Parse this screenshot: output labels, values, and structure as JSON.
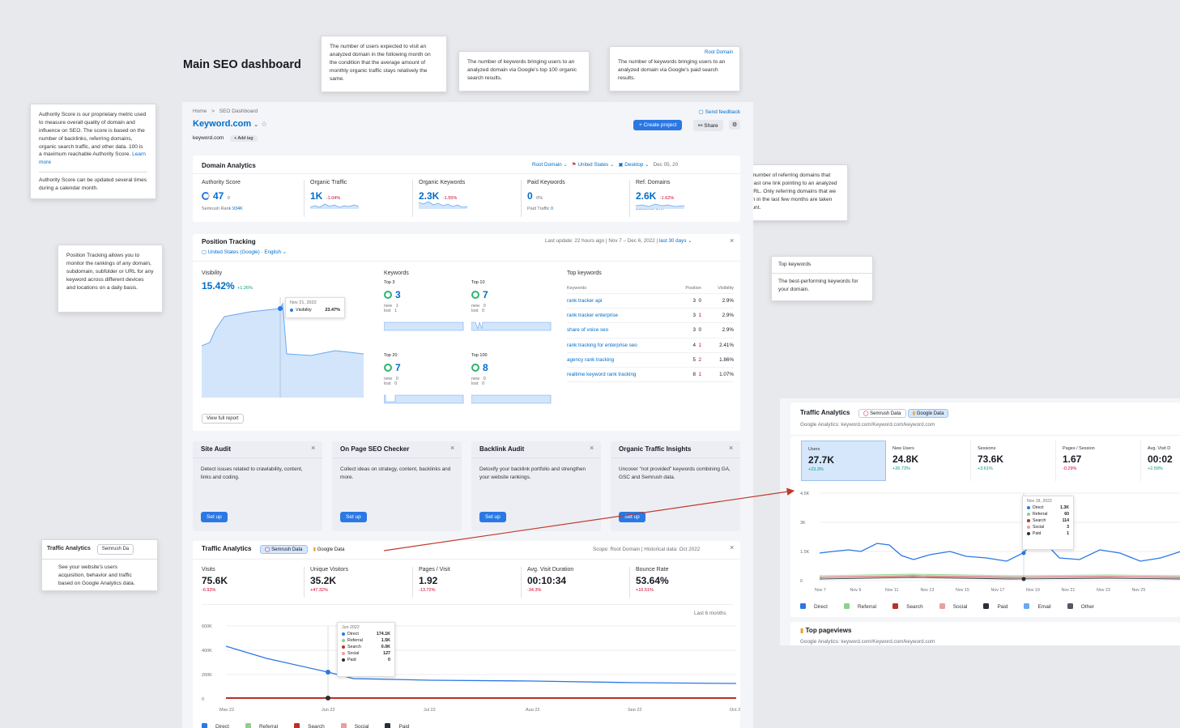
{
  "page_title": "Main SEO dashboard",
  "tips": {
    "visits": "The number of users expected to visit an analyzed domain in the following month on the condition that the average amount of monthly organic traffic stays relatively the same.",
    "organic_kw": "The number of keywords bringing users to an analyzed domain via Google's top 100 organic search results.",
    "paid_kw": "The number of keywords bringing users to an analyzed domain via Google's paid search results.",
    "paid_kw_header": "Root Domain",
    "authority": "Authority Score is our proprietary metric used to measure overall quality of domain and influence on SEO. The score is based on the number of backlinks, referring domains, organic search traffic, and other data. 100 is a maximum reachable Authority Score.",
    "authority_link": "Learn more",
    "authority_note": "Authority Score can be updated several times during a calendar month.",
    "ref_domains": "The total number of referring domains that have at least one link pointing to an analyzed domain/URL. Only referring domains that we have seen in the last few months are taken into account.",
    "position_tracking": "Position Tracking allows you to monitor the rankings of any domain, subdomain, subfolder or URL for any keyword across different devices and locations on a daily basis.",
    "top_keywords_title": "Top keywords",
    "top_keywords": "The best-performing keywords for your domain.",
    "traffic_title": "Traffic Analytics",
    "traffic_chip": "Semrush Da",
    "traffic": "See your website's users acquisition, behavior and traffic based on Google Analytics data."
  },
  "header": {
    "breadcrumb_home": "Home",
    "breadcrumb_sep": ">",
    "breadcrumb_page": "SEO Dashboard",
    "send_feedback": "Send feedback",
    "project": "Keyword.com",
    "domain": "keyword.com",
    "add_tag": "+ Add tag",
    "create_project": "+ Create project",
    "share": "Share"
  },
  "domain_analytics": {
    "title": "Domain Analytics",
    "filter_scope": "Root Domain",
    "filter_country": "United States",
    "filter_device": "Desktop",
    "filter_date": "Dec 05, 20",
    "metrics": [
      {
        "label": "Authority Score",
        "value": "47",
        "delta": "0",
        "sub": "Semrush Rank",
        "sub_val": "934K"
      },
      {
        "label": "Organic Traffic",
        "value": "1K",
        "delta": "-1.04%",
        "sub": "",
        "sub_val": ""
      },
      {
        "label": "Organic Keywords",
        "value": "2.3K",
        "delta": "-1.55%",
        "sub": "",
        "sub_val": ""
      },
      {
        "label": "Paid Keywords",
        "value": "0",
        "delta": "0%",
        "sub": "Paid Traffic",
        "sub_val": "0"
      },
      {
        "label": "Ref. Domains",
        "value": "2.6K",
        "delta": "-1.62%",
        "sub": "Backlinks",
        "sub_val": "17K"
      }
    ]
  },
  "position_tracking": {
    "title": "Position Tracking",
    "location": "United States (Google) · English",
    "last_update": "Last update: 22 hours ago",
    "range": "Nov 7 – Dec 6, 2022",
    "period": "last 30 days",
    "visibility_label": "Visibility",
    "visibility_value": "15.42%",
    "visibility_delta": "+1.26%",
    "tooltip_date": "Nov 21, 2022",
    "tooltip_label": "Visibility",
    "tooltip_value": "23.47%",
    "keywords_label": "Keywords",
    "buckets": [
      {
        "label": "Top 3",
        "value": "3",
        "new": "1",
        "lost": "1"
      },
      {
        "label": "Top 10",
        "value": "7",
        "new": "0",
        "lost": "0"
      },
      {
        "label": "Top 20",
        "value": "7",
        "new": "0",
        "lost": "0"
      },
      {
        "label": "Top 100",
        "value": "8",
        "new": "0",
        "lost": "0"
      }
    ],
    "new_label": "new",
    "lost_label": "lost",
    "top_keywords_label": "Top keywords",
    "col_keywords": "Keywords",
    "col_position": "Position",
    "col_visibility": "Visibility",
    "keywords": [
      {
        "kw": "rank tracker api",
        "pos": "3",
        "chg": "0",
        "vis": "2.9%"
      },
      {
        "kw": "rank tracker enterprise",
        "pos": "3",
        "chg": "1",
        "vis": "2.9%"
      },
      {
        "kw": "share of voice seo",
        "pos": "3",
        "chg": "0",
        "vis": "2.9%"
      },
      {
        "kw": "rank tracking for enterprise seo",
        "pos": "4",
        "chg": "1",
        "vis": "2.41%"
      },
      {
        "kw": "agency rank tracking",
        "pos": "5",
        "chg": "2",
        "vis": "1.86%"
      },
      {
        "kw": "realtime keyword rank tracking",
        "pos": "8",
        "chg": "1",
        "vis": "1.07%"
      }
    ],
    "view_full_report": "View full report"
  },
  "tools": [
    {
      "title": "Site Audit",
      "desc": "Detect issues related to crawlability, content, links and coding.",
      "btn": "Set up"
    },
    {
      "title": "On Page SEO Checker",
      "desc": "Collect ideas on strategy, content, backlinks and more.",
      "btn": "Set up"
    },
    {
      "title": "Backlink Audit",
      "desc": "Detoxify your backlink portfolio and strengthen your website rankings.",
      "btn": "Set up"
    },
    {
      "title": "Organic Traffic Insights",
      "desc": "Uncover \"not provided\" keywords combining GA, GSC and Semrush data.",
      "btn": "Set up"
    }
  ],
  "traffic": {
    "title": "Traffic Analytics",
    "chip_semrush": "Semrush Data",
    "chip_google": "Google Data",
    "scope": "Scope: Root Domain",
    "historical": "Historical data: Oct 2022",
    "period": "Last 6 months",
    "metrics": [
      {
        "label": "Visits",
        "value": "75.6K",
        "delta": "-6.93%"
      },
      {
        "label": "Unique Visitors",
        "value": "35.2K",
        "delta": "+47.32%"
      },
      {
        "label": "Pages / Visit",
        "value": "1.92",
        "delta": "-13.72%"
      },
      {
        "label": "Avg. Visit Duration",
        "value": "00:10:34",
        "delta": "-34.3%"
      },
      {
        "label": "Bounce Rate",
        "value": "53.64%",
        "delta": "+10.51%"
      }
    ],
    "tooltip_date": "Jun 2022",
    "tooltip": [
      {
        "name": "Direct",
        "val": "174.1K",
        "color": "#2b78e4"
      },
      {
        "name": "Referral",
        "val": "1.5K",
        "color": "#8cd18c"
      },
      {
        "name": "Search",
        "val": "0.0K",
        "color": "#b8322a"
      },
      {
        "name": "Social",
        "val": "127",
        "color": "#e8a0a0"
      },
      {
        "name": "Paid",
        "val": "0",
        "color": "#2a2d3a"
      }
    ],
    "yticks": [
      "600K",
      "400K",
      "200K",
      "0"
    ],
    "xticks": [
      "May 22",
      "Jun 22",
      "Jul 22",
      "Aug 22",
      "Sep 22",
      "Oct 22"
    ],
    "legend": [
      {
        "name": "Direct",
        "color": "#2b78e4"
      },
      {
        "name": "Referral",
        "color": "#8cd18c"
      },
      {
        "name": "Search",
        "color": "#b8322a"
      },
      {
        "name": "Social",
        "color": "#e8a0a0"
      },
      {
        "name": "Paid",
        "color": "#2a2d3a"
      }
    ]
  },
  "ga": {
    "title": "Traffic Analytics",
    "chip_semrush": "Semrush Data",
    "chip_google": "Google Data",
    "source": "Google Analytics: keyword.com/Keyword.com/keyword.com",
    "metrics": [
      {
        "label": "Users",
        "value": "27.7K",
        "delta": "+23.3%"
      },
      {
        "label": "New Users",
        "value": "24.8K",
        "delta": "+26.73%"
      },
      {
        "label": "Sessions",
        "value": "73.6K",
        "delta": "+3.61%"
      },
      {
        "label": "Pages / Session",
        "value": "1.67",
        "delta": "-0.29%"
      },
      {
        "label": "Avg. Visit D",
        "value": "00:02",
        "delta": "+2.59%"
      }
    ],
    "yticks": [
      "4.5K",
      "3K",
      "1.5K",
      "0"
    ],
    "xticks": [
      "Nov 7",
      "Nov 9",
      "Nov 11",
      "Nov 13",
      "Nov 15",
      "Nov 17",
      "Nov 19",
      "Nov 21",
      "Nov 23",
      "Nov 25"
    ],
    "tooltip_date": "Nov 18, 2022",
    "tooltip": [
      {
        "name": "Direct",
        "val": "1.3K",
        "color": "#2b78e4"
      },
      {
        "name": "Referral",
        "val": "60",
        "color": "#8cd18c"
      },
      {
        "name": "Search",
        "val": "114",
        "color": "#b8322a"
      },
      {
        "name": "Social",
        "val": "3",
        "color": "#e8a0a0"
      },
      {
        "name": "Paid",
        "val": "1",
        "color": "#2a2d3a"
      }
    ],
    "legend": [
      {
        "name": "Direct",
        "color": "#2b78e4"
      },
      {
        "name": "Referral",
        "color": "#8cd18c"
      },
      {
        "name": "Search",
        "color": "#b8322a"
      },
      {
        "name": "Social",
        "color": "#e8a0a0"
      },
      {
        "name": "Paid",
        "color": "#2a2d3a"
      },
      {
        "name": "Email",
        "color": "#6aa8ef"
      },
      {
        "name": "Other",
        "color": "#555864"
      }
    ],
    "top_pageviews": "Top pageviews",
    "top_source": "Google Analytics: keyword.com/Keyword.com/keyword.com"
  }
}
